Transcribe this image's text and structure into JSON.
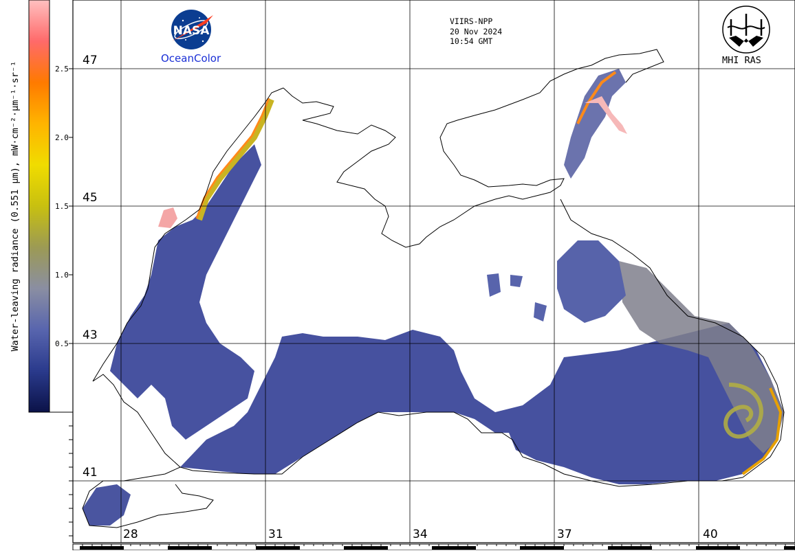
{
  "satellite": {
    "line1": "VIIRS-NPP",
    "line2": "20 Nov 2024",
    "line3": "10:54 GMT"
  },
  "logos": {
    "nasa_text": "NASA",
    "oceancolor_text": "OceanColor",
    "mhi_text": "MHI RAS",
    "nasa_icon": "nasa-meatball-icon",
    "mhi_icon": "mhi-ras-emblem-icon"
  },
  "colorbar": {
    "title": "Water-leaving radiance (0.551 µm), mW·cm⁻²·µm⁻¹·sr⁻¹",
    "ticks": [
      "2.5",
      "2.0",
      "1.5",
      "1.0",
      "0.5"
    ],
    "tick_values": [
      2.5,
      2.0,
      1.5,
      1.0,
      0.5
    ],
    "range": [
      0,
      3.0
    ],
    "colors": [
      "#0b1248",
      "#2a3a8c",
      "#5865ae",
      "#8a8ea2",
      "#9c9a54",
      "#c8c010",
      "#f0dc00",
      "#ffb400",
      "#ff7a00",
      "#ff6a6a",
      "#ffc0c0"
    ]
  },
  "grid": {
    "lat_labels": [
      "47",
      "45",
      "43",
      "41"
    ],
    "lon_labels": [
      "28",
      "31",
      "34",
      "37",
      "40"
    ],
    "lat_values": [
      47,
      45,
      43,
      41
    ],
    "lon_values": [
      28,
      31,
      34,
      37,
      40
    ]
  },
  "colors": {
    "water_low": "#3e4a98",
    "water_mid": "#5a64ae",
    "water_high": "#8a8a8a",
    "turbid_yellow": "#b4b030",
    "turbid_orange": "#ff8c1a",
    "turbid_pink": "#f4a0a0",
    "coast": "#000000"
  }
}
